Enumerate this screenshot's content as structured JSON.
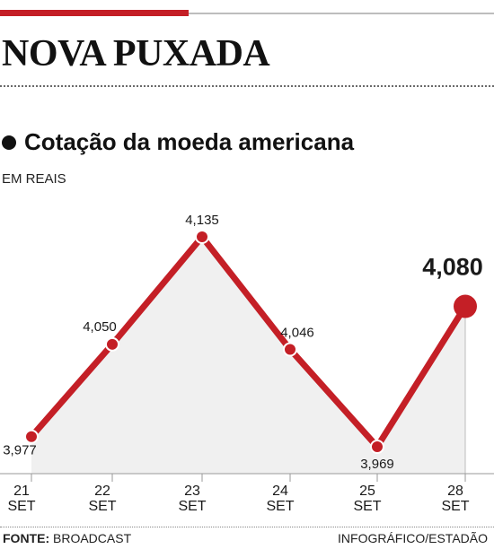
{
  "headline": "NOVA PUXADA",
  "colors": {
    "accent": "#c41f26",
    "area": "#f0f0f0",
    "axis": "#9a9a9a"
  },
  "footer": {
    "source_label": "FONTE:",
    "source_value": "BROADCAST",
    "credit": "INFOGRÁFICO/ESTADÃO"
  },
  "chart_data": {
    "type": "line",
    "title": "Cotação da moeda americana",
    "ylabel": "EM REAIS",
    "xlabel": "",
    "categories": [
      "21\nSET",
      "22\nSET",
      "23\nSET",
      "24\nSET",
      "25\nSET",
      "28\nSET"
    ],
    "values": [
      3.977,
      4.05,
      4.135,
      4.046,
      3.969,
      4.08
    ],
    "value_labels": [
      "3,977",
      "4,050",
      "4,135",
      "4,046",
      "3,969",
      "4,080"
    ],
    "highlight_last": true,
    "grid": false,
    "filled_area": true
  }
}
